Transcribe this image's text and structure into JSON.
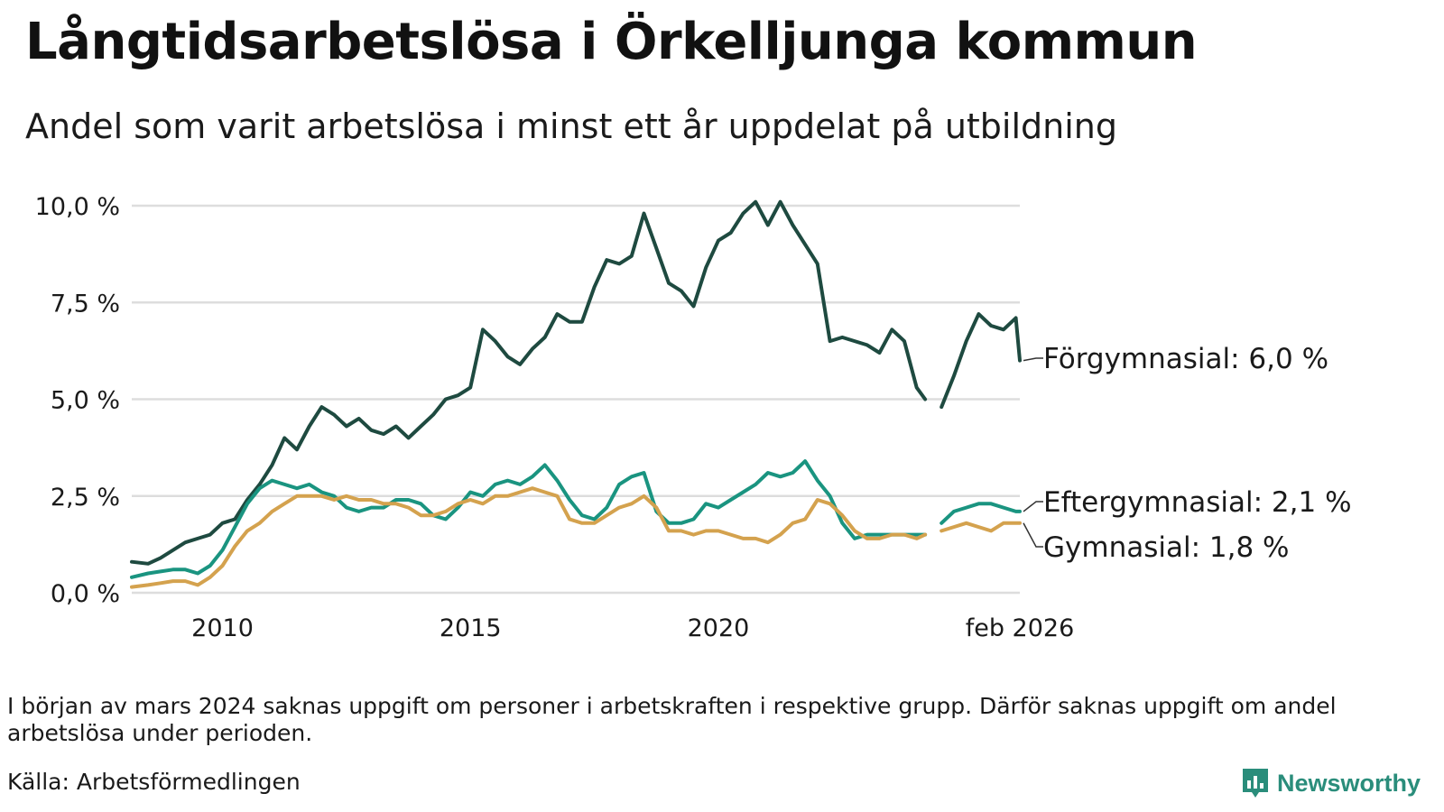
{
  "title": "Långtidsarbetslösa i Örkelljunga kommun",
  "subtitle": "Andel som varit arbetslösa i minst ett år uppdelat på utbildning",
  "note": "I början av mars 2024 saknas uppgift om personer i arbetskraften i respektive grupp. Därför saknas uppgift om andel arbetslösa under perioden.",
  "source": "Källa: Arbetsförmedlingen",
  "brand": {
    "name": "Newsworthy",
    "icon": "newsworthy-logo-icon"
  },
  "colors": {
    "forgymnasial": "#1e4a40",
    "eftergymnasial": "#1a9480",
    "gymnasial": "#d4a24e",
    "grid": "#dddddd"
  },
  "chart_data": {
    "type": "line",
    "title": "Långtidsarbetslösa i Örkelljunga kommun",
    "subtitle": "Andel som varit arbetslösa i minst ett år uppdelat på utbildning",
    "xlabel": "",
    "ylabel": "",
    "xlim": [
      2008.17,
      2026.08
    ],
    "ylim": [
      0,
      10
    ],
    "y_ticks": [
      {
        "value": 0,
        "label": "0,0 %"
      },
      {
        "value": 2.5,
        "label": "2,5 %"
      },
      {
        "value": 5,
        "label": "5,0 %"
      },
      {
        "value": 7.5,
        "label": "7,5 %"
      },
      {
        "value": 10,
        "label": "10,0 %"
      }
    ],
    "x_ticks": [
      {
        "value": 2010,
        "label": "2010"
      },
      {
        "value": 2015,
        "label": "2015"
      },
      {
        "value": 2020,
        "label": "2020"
      },
      {
        "value": 2026.08,
        "label": "feb 2026"
      }
    ],
    "grid": true,
    "gap": [
      2024.17,
      2024.33
    ],
    "series": [
      {
        "name": "Förgymnasial",
        "end_label": "Förgymnasial: 6,0 %",
        "color_key": "forgymnasial",
        "points": [
          [
            2008.17,
            0.8
          ],
          [
            2008.5,
            0.75
          ],
          [
            2008.75,
            0.9
          ],
          [
            2009.0,
            1.1
          ],
          [
            2009.25,
            1.3
          ],
          [
            2009.5,
            1.4
          ],
          [
            2009.75,
            1.5
          ],
          [
            2010.0,
            1.8
          ],
          [
            2010.25,
            1.9
          ],
          [
            2010.5,
            2.4
          ],
          [
            2010.75,
            2.8
          ],
          [
            2011.0,
            3.3
          ],
          [
            2011.25,
            4.0
          ],
          [
            2011.5,
            3.7
          ],
          [
            2011.75,
            4.3
          ],
          [
            2012.0,
            4.8
          ],
          [
            2012.25,
            4.6
          ],
          [
            2012.5,
            4.3
          ],
          [
            2012.75,
            4.5
          ],
          [
            2013.0,
            4.2
          ],
          [
            2013.25,
            4.1
          ],
          [
            2013.5,
            4.3
          ],
          [
            2013.75,
            4.0
          ],
          [
            2014.0,
            4.3
          ],
          [
            2014.25,
            4.6
          ],
          [
            2014.5,
            5.0
          ],
          [
            2014.75,
            5.1
          ],
          [
            2015.0,
            5.3
          ],
          [
            2015.25,
            6.8
          ],
          [
            2015.5,
            6.5
          ],
          [
            2015.75,
            6.1
          ],
          [
            2016.0,
            5.9
          ],
          [
            2016.25,
            6.3
          ],
          [
            2016.5,
            6.6
          ],
          [
            2016.75,
            7.2
          ],
          [
            2017.0,
            7.0
          ],
          [
            2017.25,
            7.0
          ],
          [
            2017.5,
            7.9
          ],
          [
            2017.75,
            8.6
          ],
          [
            2018.0,
            8.5
          ],
          [
            2018.25,
            8.7
          ],
          [
            2018.5,
            9.8
          ],
          [
            2018.75,
            8.9
          ],
          [
            2019.0,
            8.0
          ],
          [
            2019.25,
            7.8
          ],
          [
            2019.5,
            7.4
          ],
          [
            2019.75,
            8.4
          ],
          [
            2020.0,
            9.1
          ],
          [
            2020.25,
            9.3
          ],
          [
            2020.5,
            9.8
          ],
          [
            2020.75,
            10.1
          ],
          [
            2021.0,
            9.5
          ],
          [
            2021.25,
            10.1
          ],
          [
            2021.5,
            9.5
          ],
          [
            2021.75,
            9.0
          ],
          [
            2022.0,
            8.5
          ],
          [
            2022.25,
            6.5
          ],
          [
            2022.5,
            6.6
          ],
          [
            2022.75,
            6.5
          ],
          [
            2023.0,
            6.4
          ],
          [
            2023.25,
            6.2
          ],
          [
            2023.5,
            6.8
          ],
          [
            2023.75,
            6.5
          ],
          [
            2024.0,
            5.3
          ],
          [
            2024.17,
            5.0
          ],
          [
            2024.5,
            4.8
          ],
          [
            2024.75,
            5.6
          ],
          [
            2025.0,
            6.5
          ],
          [
            2025.25,
            7.2
          ],
          [
            2025.5,
            6.9
          ],
          [
            2025.75,
            6.8
          ],
          [
            2026.0,
            7.1
          ],
          [
            2026.08,
            6.0
          ]
        ]
      },
      {
        "name": "Eftergymnasial",
        "end_label": "Eftergymnasial: 2,1 %",
        "color_key": "eftergymnasial",
        "points": [
          [
            2008.17,
            0.4
          ],
          [
            2008.5,
            0.5
          ],
          [
            2008.75,
            0.55
          ],
          [
            2009.0,
            0.6
          ],
          [
            2009.25,
            0.6
          ],
          [
            2009.5,
            0.5
          ],
          [
            2009.75,
            0.7
          ],
          [
            2010.0,
            1.1
          ],
          [
            2010.25,
            1.7
          ],
          [
            2010.5,
            2.3
          ],
          [
            2010.75,
            2.7
          ],
          [
            2011.0,
            2.9
          ],
          [
            2011.25,
            2.8
          ],
          [
            2011.5,
            2.7
          ],
          [
            2011.75,
            2.8
          ],
          [
            2012.0,
            2.6
          ],
          [
            2012.25,
            2.5
          ],
          [
            2012.5,
            2.2
          ],
          [
            2012.75,
            2.1
          ],
          [
            2013.0,
            2.2
          ],
          [
            2013.25,
            2.2
          ],
          [
            2013.5,
            2.4
          ],
          [
            2013.75,
            2.4
          ],
          [
            2014.0,
            2.3
          ],
          [
            2014.25,
            2.0
          ],
          [
            2014.5,
            1.9
          ],
          [
            2014.75,
            2.2
          ],
          [
            2015.0,
            2.6
          ],
          [
            2015.25,
            2.5
          ],
          [
            2015.5,
            2.8
          ],
          [
            2015.75,
            2.9
          ],
          [
            2016.0,
            2.8
          ],
          [
            2016.25,
            3.0
          ],
          [
            2016.5,
            3.3
          ],
          [
            2016.75,
            2.9
          ],
          [
            2017.0,
            2.4
          ],
          [
            2017.25,
            2.0
          ],
          [
            2017.5,
            1.9
          ],
          [
            2017.75,
            2.2
          ],
          [
            2018.0,
            2.8
          ],
          [
            2018.25,
            3.0
          ],
          [
            2018.5,
            3.1
          ],
          [
            2018.75,
            2.1
          ],
          [
            2019.0,
            1.8
          ],
          [
            2019.25,
            1.8
          ],
          [
            2019.5,
            1.9
          ],
          [
            2019.75,
            2.3
          ],
          [
            2020.0,
            2.2
          ],
          [
            2020.25,
            2.4
          ],
          [
            2020.5,
            2.6
          ],
          [
            2020.75,
            2.8
          ],
          [
            2021.0,
            3.1
          ],
          [
            2021.25,
            3.0
          ],
          [
            2021.5,
            3.1
          ],
          [
            2021.75,
            3.4
          ],
          [
            2022.0,
            2.9
          ],
          [
            2022.25,
            2.5
          ],
          [
            2022.5,
            1.8
          ],
          [
            2022.75,
            1.4
          ],
          [
            2023.0,
            1.5
          ],
          [
            2023.25,
            1.5
          ],
          [
            2023.5,
            1.5
          ],
          [
            2023.75,
            1.5
          ],
          [
            2024.0,
            1.5
          ],
          [
            2024.17,
            1.5
          ],
          [
            2024.5,
            1.8
          ],
          [
            2024.75,
            2.1
          ],
          [
            2025.0,
            2.2
          ],
          [
            2025.25,
            2.3
          ],
          [
            2025.5,
            2.3
          ],
          [
            2025.75,
            2.2
          ],
          [
            2026.0,
            2.1
          ],
          [
            2026.08,
            2.1
          ]
        ]
      },
      {
        "name": "Gymnasial",
        "end_label": "Gymnasial: 1,8 %",
        "color_key": "gymnasial",
        "points": [
          [
            2008.17,
            0.15
          ],
          [
            2008.5,
            0.2
          ],
          [
            2008.75,
            0.25
          ],
          [
            2009.0,
            0.3
          ],
          [
            2009.25,
            0.3
          ],
          [
            2009.5,
            0.2
          ],
          [
            2009.75,
            0.4
          ],
          [
            2010.0,
            0.7
          ],
          [
            2010.25,
            1.2
          ],
          [
            2010.5,
            1.6
          ],
          [
            2010.75,
            1.8
          ],
          [
            2011.0,
            2.1
          ],
          [
            2011.25,
            2.3
          ],
          [
            2011.5,
            2.5
          ],
          [
            2011.75,
            2.5
          ],
          [
            2012.0,
            2.5
          ],
          [
            2012.25,
            2.4
          ],
          [
            2012.5,
            2.5
          ],
          [
            2012.75,
            2.4
          ],
          [
            2013.0,
            2.4
          ],
          [
            2013.25,
            2.3
          ],
          [
            2013.5,
            2.3
          ],
          [
            2013.75,
            2.2
          ],
          [
            2014.0,
            2.0
          ],
          [
            2014.25,
            2.0
          ],
          [
            2014.5,
            2.1
          ],
          [
            2014.75,
            2.3
          ],
          [
            2015.0,
            2.4
          ],
          [
            2015.25,
            2.3
          ],
          [
            2015.5,
            2.5
          ],
          [
            2015.75,
            2.5
          ],
          [
            2016.0,
            2.6
          ],
          [
            2016.25,
            2.7
          ],
          [
            2016.5,
            2.6
          ],
          [
            2016.75,
            2.5
          ],
          [
            2017.0,
            1.9
          ],
          [
            2017.25,
            1.8
          ],
          [
            2017.5,
            1.8
          ],
          [
            2017.75,
            2.0
          ],
          [
            2018.0,
            2.2
          ],
          [
            2018.25,
            2.3
          ],
          [
            2018.5,
            2.5
          ],
          [
            2018.75,
            2.2
          ],
          [
            2019.0,
            1.6
          ],
          [
            2019.25,
            1.6
          ],
          [
            2019.5,
            1.5
          ],
          [
            2019.75,
            1.6
          ],
          [
            2020.0,
            1.6
          ],
          [
            2020.25,
            1.5
          ],
          [
            2020.5,
            1.4
          ],
          [
            2020.75,
            1.4
          ],
          [
            2021.0,
            1.3
          ],
          [
            2021.25,
            1.5
          ],
          [
            2021.5,
            1.8
          ],
          [
            2021.75,
            1.9
          ],
          [
            2022.0,
            2.4
          ],
          [
            2022.25,
            2.3
          ],
          [
            2022.5,
            2.0
          ],
          [
            2022.75,
            1.6
          ],
          [
            2023.0,
            1.4
          ],
          [
            2023.25,
            1.4
          ],
          [
            2023.5,
            1.5
          ],
          [
            2023.75,
            1.5
          ],
          [
            2024.0,
            1.4
          ],
          [
            2024.17,
            1.5
          ],
          [
            2024.5,
            1.6
          ],
          [
            2024.75,
            1.7
          ],
          [
            2025.0,
            1.8
          ],
          [
            2025.25,
            1.7
          ],
          [
            2025.5,
            1.6
          ],
          [
            2025.75,
            1.8
          ],
          [
            2026.0,
            1.8
          ],
          [
            2026.08,
            1.8
          ]
        ]
      }
    ]
  }
}
